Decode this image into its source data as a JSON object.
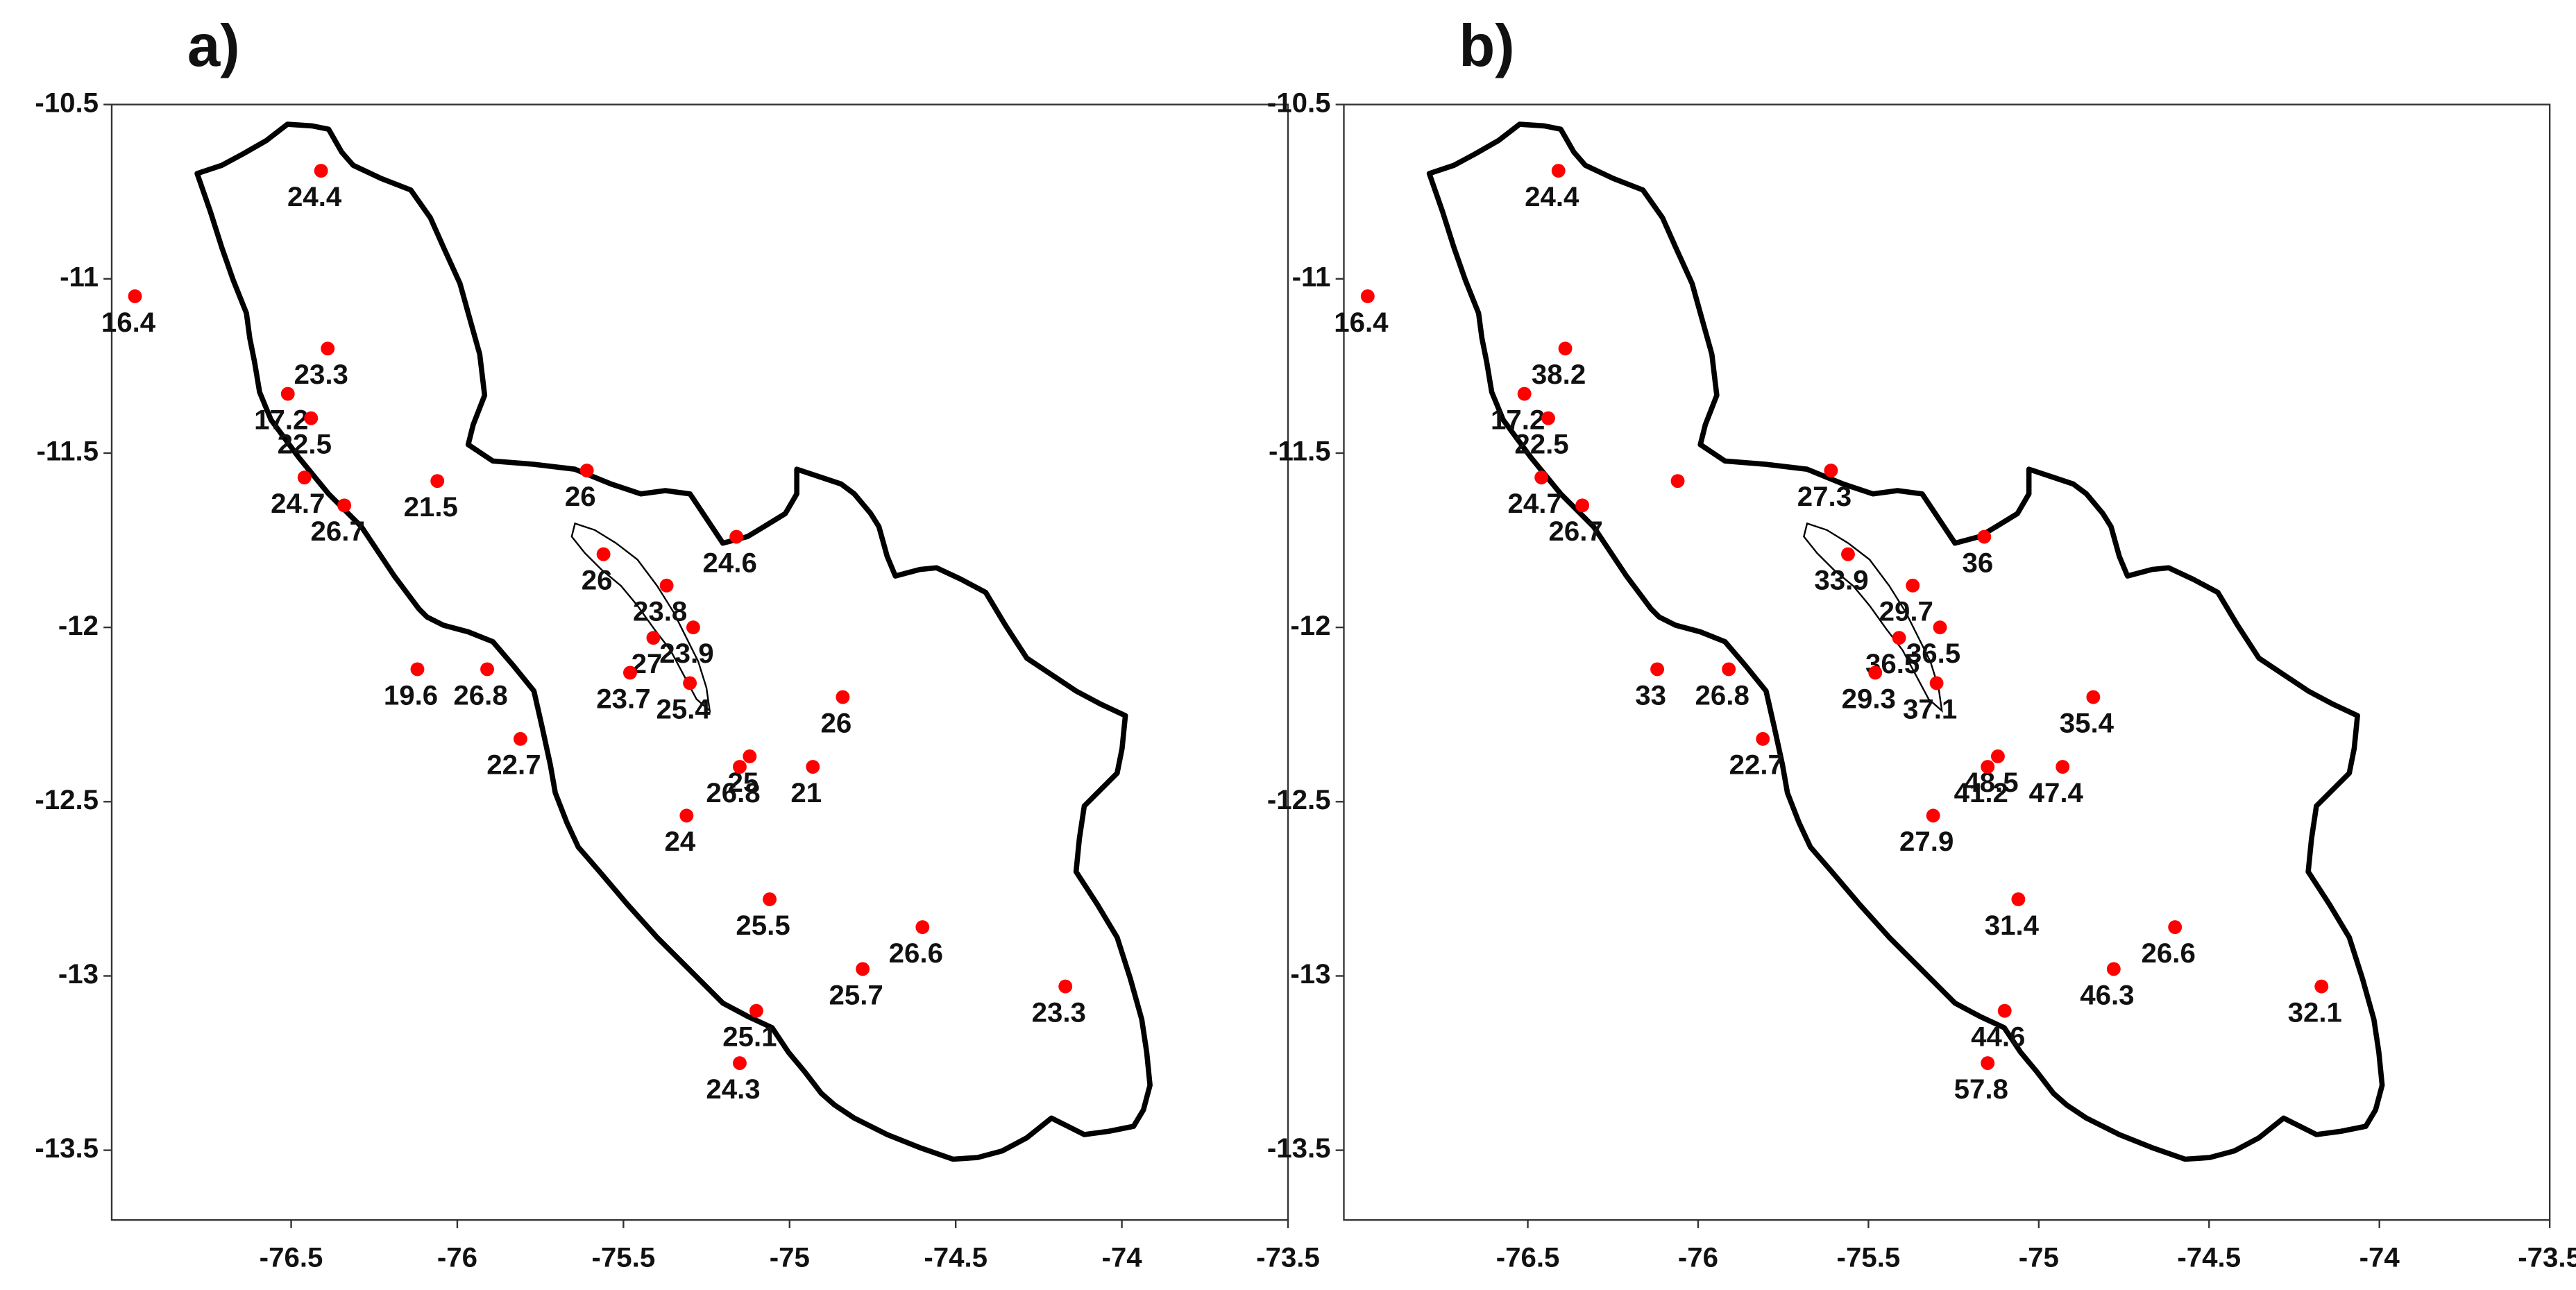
{
  "chart_data": [
    {
      "type": "scatter",
      "title": "a)",
      "color": "#ff0000",
      "x": [
        -76.41,
        -76.97,
        -76.39,
        -76.51,
        -76.44,
        -75.61,
        -76.06,
        -76.46,
        -76.34,
        -75.16,
        -75.56,
        -75.37,
        -75.41,
        -75.29,
        -76.12,
        -75.91,
        -75.48,
        -75.3,
        -74.84,
        -75.81,
        -75.12,
        -75.15,
        -74.93,
        -75.31,
        -75.06,
        -74.6,
        -74.78,
        -74.17,
        -75.1,
        -75.15
      ],
      "y": [
        -10.69,
        -11.05,
        -11.2,
        -11.33,
        -11.4,
        -11.55,
        -11.58,
        -11.57,
        -11.65,
        -11.74,
        -11.79,
        -11.88,
        -12.03,
        -12.0,
        -12.12,
        -12.12,
        -12.13,
        -12.16,
        -12.2,
        -12.32,
        -12.37,
        -12.4,
        -12.4,
        -12.54,
        -12.78,
        -12.86,
        -12.98,
        -13.03,
        -13.1,
        -13.25
      ],
      "labels": [
        24.4,
        16.4,
        23.3,
        17.2,
        22.5,
        26,
        21.5,
        24.7,
        26.7,
        24.6,
        26,
        23.8,
        27,
        23.9,
        19.6,
        26.8,
        23.7,
        25.4,
        26,
        22.7,
        25,
        26.8,
        21,
        24,
        25.5,
        26.6,
        25.7,
        23.3,
        25.1,
        24.3
      ],
      "xlim": [
        -77.04,
        -73.5
      ],
      "ylim": [
        -13.7,
        -10.5
      ],
      "xticks": [
        -76.5,
        -76,
        -75.5,
        -75,
        -74.5,
        -74,
        -73.5
      ],
      "yticks": [
        -10.5,
        -11,
        -11.5,
        -12,
        -12.5,
        -13,
        -13.5
      ]
    },
    {
      "type": "scatter",
      "title": "b)",
      "color": "#ff0000",
      "x": [
        -76.41,
        -76.97,
        -76.39,
        -76.51,
        -76.44,
        -75.61,
        -76.06,
        -76.46,
        -76.34,
        -75.16,
        -75.56,
        -75.37,
        -75.41,
        -75.29,
        -76.12,
        -75.91,
        -75.48,
        -75.3,
        -74.84,
        -75.81,
        -75.12,
        -75.15,
        -74.93,
        -75.31,
        -75.06,
        -74.6,
        -74.78,
        -74.17,
        -75.1,
        -75.15
      ],
      "y": [
        -10.69,
        -11.05,
        -11.2,
        -11.33,
        -11.4,
        -11.55,
        -11.58,
        -11.57,
        -11.65,
        -11.74,
        -11.79,
        -11.88,
        -12.03,
        -12.0,
        -12.12,
        -12.12,
        -12.13,
        -12.16,
        -12.2,
        -12.32,
        -12.37,
        -12.4,
        -12.4,
        -12.54,
        -12.78,
        -12.86,
        -12.98,
        -13.03,
        -13.1,
        -13.25
      ],
      "labels": [
        24.4,
        16.4,
        38.2,
        17.2,
        22.5,
        27.3,
        null,
        24.7,
        26.7,
        36,
        33.9,
        29.7,
        36.5,
        36.5,
        33,
        26.8,
        29.3,
        37.1,
        35.4,
        22.7,
        48.5,
        41.2,
        47.4,
        27.9,
        31.4,
        26.6,
        46.3,
        32.1,
        44.6,
        57.8
      ],
      "xlim": [
        -77.04,
        -73.5
      ],
      "ylim": [
        -13.7,
        -10.5
      ],
      "xticks": [
        -76.5,
        -76,
        -75.5,
        -75,
        -74.5,
        -74,
        -73.5
      ],
      "yticks": [
        -10.5,
        -11,
        -11.5,
        -12,
        -12.5,
        -13,
        -13.5
      ]
    }
  ]
}
